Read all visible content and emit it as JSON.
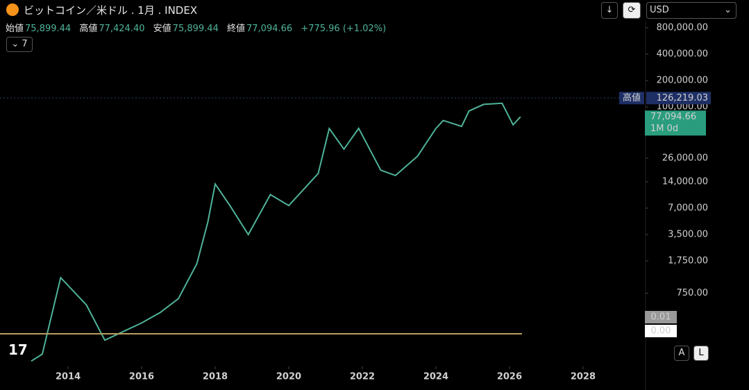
{
  "header": {
    "symbol": "ビットコイン／米ドル . 1月 . INDEX",
    "currency": "USD",
    "indicator_count": "7",
    "ohlc": [
      {
        "label": "始値",
        "value": "75,899.44"
      },
      {
        "label": "高値",
        "value": "77,424.40"
      },
      {
        "label": "安値",
        "value": "75,899.44"
      },
      {
        "label": "終値",
        "value": "77,094.66"
      }
    ],
    "change": "+775.96 (+1.02%)",
    "scale_buttons": [
      "A",
      "L"
    ]
  },
  "chart_data": {
    "type": "line",
    "color": "#4fb39a",
    "log_scale": true,
    "x": [
      2013.0,
      2013.3,
      2013.8,
      2014.5,
      2015.0,
      2016.0,
      2016.5,
      2017.0,
      2017.5,
      2017.8,
      2018.0,
      2018.4,
      2018.9,
      2019.5,
      2020.0,
      2020.8,
      2021.1,
      2021.5,
      2021.9,
      2022.5,
      2022.9,
      2023.5,
      2024.0,
      2024.2,
      2024.7,
      2024.9,
      2025.3,
      2025.8,
      2026.1,
      2026.3
    ],
    "values": [
      126,
      151,
      1127,
      550,
      218,
      343,
      450,
      650,
      1620,
      4850,
      13200,
      7500,
      3500,
      10000,
      7500,
      17400,
      56700,
      33000,
      57000,
      19000,
      16500,
      27400,
      56700,
      70000,
      60000,
      90000,
      107000,
      110000,
      62500,
      77094.66
    ],
    "xlim": [
      2012.15,
      2029.7
    ],
    "ylim": [
      100,
      960000
    ],
    "xticks": [
      2014,
      2016,
      2018,
      2020,
      2022,
      2024,
      2026,
      2028
    ],
    "yticks": [
      {
        "value": 800000,
        "label": "800,000.00"
      },
      {
        "value": 400000,
        "label": "400,000.00"
      },
      {
        "value": 200000,
        "label": "200,000.00"
      },
      {
        "value": 100000,
        "label": "100,000.00"
      },
      {
        "value": 26000,
        "label": "26,000.00"
      },
      {
        "value": 14000,
        "label": "14,000.00"
      },
      {
        "value": 7000,
        "label": "7,000.00"
      },
      {
        "value": 3500,
        "label": "3,500.00"
      },
      {
        "value": 1750,
        "label": "1,750.00"
      },
      {
        "value": 750,
        "label": "750.00"
      }
    ],
    "high_marker": {
      "label": "高値",
      "value": 126219.03,
      "value_label": "126,219.03"
    },
    "last_price": {
      "value": 77094.66,
      "value_label": "77,094.66",
      "countdown": "1M 0d"
    },
    "volume_labels": [
      "0.01",
      "0.00"
    ]
  }
}
